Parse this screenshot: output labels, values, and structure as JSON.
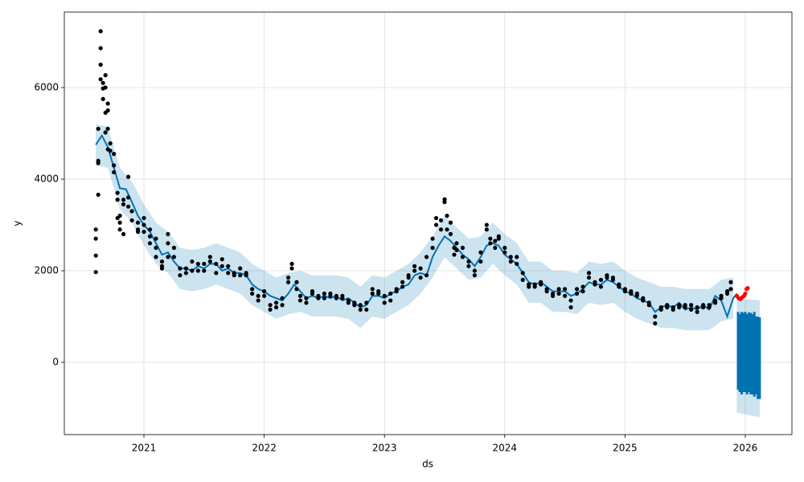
{
  "chart_data": {
    "type": "forecast",
    "xlabel": "ds",
    "ylabel": "y",
    "xlim": [
      2020.338,
      2026.388
    ],
    "ylim": [
      -1579,
      7649
    ],
    "xticks": [
      2021,
      2022,
      2023,
      2024,
      2025,
      2026
    ],
    "yticks": [
      0,
      2000,
      4000,
      6000
    ],
    "grid": true,
    "series": [
      {
        "type": "band",
        "color": "#0072B2",
        "x": [
          2020.6,
          2020.7,
          2020.8,
          2020.9,
          2021.0,
          2021.1,
          2021.2,
          2021.3,
          2021.4,
          2021.5,
          2021.6,
          2021.7,
          2021.8,
          2021.9,
          2022.0,
          2022.1,
          2022.2,
          2022.3,
          2022.4,
          2022.5,
          2022.6,
          2022.7,
          2022.8,
          2022.9,
          2023.0,
          2023.1,
          2023.2,
          2023.3,
          2023.4,
          2023.5,
          2023.6,
          2023.7,
          2023.8,
          2023.9,
          2024.0,
          2024.1,
          2024.2,
          2024.3,
          2024.4,
          2024.5,
          2024.6,
          2024.7,
          2024.8,
          2024.9,
          2025.0,
          2025.1,
          2025.2,
          2025.3,
          2025.4,
          2025.5,
          2025.6,
          2025.7,
          2025.8,
          2025.9
        ],
        "upper": [
          5200,
          5150,
          4250,
          3950,
          3450,
          3050,
          2850,
          2500,
          2450,
          2500,
          2600,
          2500,
          2400,
          2150,
          2000,
          1850,
          1950,
          2000,
          1900,
          1900,
          1900,
          1850,
          1650,
          1900,
          1850,
          2000,
          2150,
          2400,
          2750,
          3200,
          2950,
          2700,
          2750,
          3050,
          2800,
          2600,
          2200,
          2200,
          2000,
          2000,
          1950,
          2200,
          2150,
          2200,
          2000,
          1850,
          1750,
          1650,
          1650,
          1600,
          1600,
          1600,
          1800,
          1850
        ],
        "lower": [
          4300,
          4250,
          3350,
          3050,
          2550,
          2150,
          1950,
          1600,
          1550,
          1600,
          1700,
          1600,
          1500,
          1250,
          1100,
          950,
          1050,
          1100,
          1000,
          1000,
          1000,
          950,
          750,
          1000,
          950,
          1100,
          1250,
          1500,
          1850,
          2300,
          2050,
          1800,
          1850,
          2150,
          1900,
          1700,
          1300,
          1300,
          1100,
          1100,
          1050,
          1300,
          1250,
          1300,
          1100,
          950,
          850,
          750,
          750,
          700,
          700,
          700,
          900,
          950
        ]
      },
      {
        "type": "band",
        "color": "#0072B2",
        "x": [
          2025.93,
          2026.12
        ],
        "upper": [
          1400,
          1350
        ],
        "lower": [
          -1100,
          -1200
        ]
      },
      {
        "type": "line",
        "color": "#0072B2",
        "x": [
          2020.6,
          2020.65,
          2020.7,
          2020.75,
          2020.8,
          2020.85,
          2020.9,
          2020.95,
          2021.0,
          2021.05,
          2021.1,
          2021.15,
          2021.2,
          2021.25,
          2021.3,
          2021.35,
          2021.4,
          2021.45,
          2021.5,
          2021.55,
          2021.6,
          2021.65,
          2021.7,
          2021.75,
          2021.8,
          2021.85,
          2021.9,
          2021.95,
          2022.0,
          2022.05,
          2022.1,
          2022.15,
          2022.2,
          2022.25,
          2022.3,
          2022.35,
          2022.4,
          2022.45,
          2022.5,
          2022.55,
          2022.6,
          2022.65,
          2022.7,
          2022.75,
          2022.8,
          2022.85,
          2022.9,
          2022.95,
          2023.0,
          2023.05,
          2023.1,
          2023.15,
          2023.2,
          2023.25,
          2023.3,
          2023.35,
          2023.4,
          2023.45,
          2023.5,
          2023.55,
          2023.6,
          2023.65,
          2023.7,
          2023.75,
          2023.8,
          2023.85,
          2023.9,
          2023.95,
          2024.0,
          2024.05,
          2024.1,
          2024.15,
          2024.2,
          2024.25,
          2024.3,
          2024.35,
          2024.4,
          2024.45,
          2024.5,
          2024.55,
          2024.6,
          2024.65,
          2024.7,
          2024.75,
          2024.8,
          2024.85,
          2024.9,
          2024.95,
          2025.0,
          2025.05,
          2025.1,
          2025.15,
          2025.2,
          2025.25,
          2025.3,
          2025.35,
          2025.4,
          2025.45,
          2025.5,
          2025.55,
          2025.6,
          2025.65,
          2025.7,
          2025.75,
          2025.8,
          2025.85,
          2025.9,
          2025.93
        ],
        "values": [
          4750,
          4950,
          4700,
          4250,
          3800,
          3780,
          3500,
          3200,
          3000,
          2850,
          2600,
          2350,
          2400,
          2200,
          2050,
          2050,
          2000,
          2100,
          2050,
          2150,
          2150,
          2000,
          2050,
          1950,
          1950,
          1900,
          1700,
          1600,
          1550,
          1450,
          1400,
          1350,
          1500,
          1700,
          1550,
          1400,
          1450,
          1400,
          1450,
          1400,
          1450,
          1350,
          1400,
          1300,
          1200,
          1250,
          1450,
          1450,
          1400,
          1500,
          1550,
          1650,
          1700,
          1900,
          1950,
          1900,
          2300,
          2550,
          2750,
          2650,
          2500,
          2350,
          2250,
          2100,
          2300,
          2550,
          2600,
          2550,
          2350,
          2250,
          2150,
          1950,
          1750,
          1700,
          1750,
          1650,
          1550,
          1550,
          1550,
          1450,
          1500,
          1600,
          1750,
          1700,
          1700,
          1800,
          1750,
          1650,
          1550,
          1500,
          1400,
          1350,
          1300,
          1100,
          1200,
          1250,
          1200,
          1300,
          1150,
          1200,
          1150,
          1250,
          1150,
          1450,
          1350,
          1000,
          1400,
          1500
        ]
      },
      {
        "type": "range",
        "color": "#0072B2",
        "x": [
          2025.94,
          2025.955,
          2025.97,
          2025.985,
          2026.0,
          2026.015,
          2026.03,
          2026.045,
          2026.06,
          2026.075,
          2026.09,
          2026.105,
          2026.12
        ],
        "upper": [
          1100,
          1050,
          1100,
          1080,
          1100,
          1050,
          1090,
          1080,
          1050,
          1100,
          1000,
          1000,
          980
        ],
        "lower": [
          -600,
          -650,
          -700,
          -650,
          -650,
          -700,
          -650,
          -700,
          -700,
          -750,
          -700,
          -800,
          -800
        ]
      },
      {
        "type": "scatter",
        "color": "#000000",
        "x": [
          2020.6,
          2020.6,
          2020.6,
          2020.6,
          2020.62,
          2020.62,
          2020.62,
          2020.62,
          2020.64,
          2020.64,
          2020.64,
          2020.64,
          2020.66,
          2020.66,
          2020.66,
          2020.68,
          2020.68,
          2020.68,
          2020.68,
          2020.7,
          2020.7,
          2020.7,
          2020.7,
          2020.72,
          2020.72,
          2020.75,
          2020.75,
          2020.75,
          2020.78,
          2020.78,
          2020.78,
          2020.8,
          2020.8,
          2020.8,
          2020.83,
          2020.83,
          2020.83,
          2020.87,
          2020.87,
          2020.87,
          2020.9,
          2020.9,
          2020.95,
          2020.95,
          2020.95,
          2021.0,
          2021.0,
          2021.0,
          2021.05,
          2021.05,
          2021.05,
          2021.1,
          2021.1,
          2021.1,
          2021.15,
          2021.15,
          2021.15,
          2021.2,
          2021.2,
          2021.2,
          2021.25,
          2021.25,
          2021.3,
          2021.3,
          2021.35,
          2021.35,
          2021.4,
          2021.4,
          2021.45,
          2021.45,
          2021.5,
          2021.5,
          2021.55,
          2021.55,
          2021.6,
          2021.6,
          2021.65,
          2021.65,
          2021.7,
          2021.7,
          2021.75,
          2021.75,
          2021.8,
          2021.8,
          2021.85,
          2021.85,
          2021.9,
          2021.9,
          2021.95,
          2021.95,
          2022.0,
          2022.0,
          2022.05,
          2022.05,
          2022.1,
          2022.1,
          2022.15,
          2022.15,
          2022.2,
          2022.2,
          2022.23,
          2022.23,
          2022.27,
          2022.27,
          2022.3,
          2022.3,
          2022.35,
          2022.35,
          2022.4,
          2022.4,
          2022.45,
          2022.45,
          2022.5,
          2022.5,
          2022.55,
          2022.55,
          2022.6,
          2022.6,
          2022.65,
          2022.65,
          2022.7,
          2022.7,
          2022.75,
          2022.75,
          2022.8,
          2022.8,
          2022.85,
          2022.85,
          2022.9,
          2022.9,
          2022.95,
          2022.95,
          2023.0,
          2023.0,
          2023.05,
          2023.05,
          2023.1,
          2023.1,
          2023.15,
          2023.15,
          2023.2,
          2023.2,
          2023.25,
          2023.25,
          2023.3,
          2023.3,
          2023.35,
          2023.35,
          2023.4,
          2023.4,
          2023.43,
          2023.43,
          2023.47,
          2023.47,
          2023.5,
          2023.5,
          2023.52,
          2023.52,
          2023.55,
          2023.55,
          2023.58,
          2023.58,
          2023.6,
          2023.6,
          2023.65,
          2023.65,
          2023.7,
          2023.7,
          2023.75,
          2023.75,
          2023.8,
          2023.8,
          2023.85,
          2023.85,
          2023.88,
          2023.88,
          2023.92,
          2023.92,
          2023.95,
          2023.95,
          2024.0,
          2024.0,
          2024.05,
          2024.05,
          2024.1,
          2024.1,
          2024.15,
          2024.15,
          2024.2,
          2024.2,
          2024.25,
          2024.25,
          2024.3,
          2024.3,
          2024.35,
          2024.35,
          2024.4,
          2024.4,
          2024.45,
          2024.45,
          2024.5,
          2024.5,
          2024.55,
          2024.55,
          2024.6,
          2024.6,
          2024.65,
          2024.65,
          2024.7,
          2024.7,
          2024.75,
          2024.75,
          2024.8,
          2024.8,
          2024.85,
          2024.85,
          2024.9,
          2024.9,
          2024.95,
          2024.95,
          2025.0,
          2025.0,
          2025.05,
          2025.05,
          2025.1,
          2025.1,
          2025.15,
          2025.15,
          2025.2,
          2025.2,
          2025.25,
          2025.25,
          2025.3,
          2025.3,
          2025.35,
          2025.35,
          2025.4,
          2025.4,
          2025.45,
          2025.45,
          2025.5,
          2025.5,
          2025.55,
          2025.55,
          2025.6,
          2025.6,
          2025.65,
          2025.65,
          2025.7,
          2025.7,
          2025.75,
          2025.75,
          2025.8,
          2025.8,
          2025.85,
          2025.85,
          2025.88,
          2025.88
        ],
        "values": [
          1970,
          2330,
          2700,
          2900,
          3660,
          4350,
          4400,
          5100,
          6180,
          6860,
          7230,
          6500,
          5980,
          5750,
          6100,
          5450,
          5020,
          6000,
          6270,
          5650,
          5500,
          4650,
          5100,
          4780,
          4620,
          4550,
          4300,
          4150,
          3700,
          3550,
          3150,
          3050,
          2900,
          3200,
          2800,
          3550,
          3450,
          3600,
          3400,
          4050,
          3300,
          3100,
          2900,
          3050,
          2850,
          3150,
          3000,
          2850,
          2750,
          2900,
          2600,
          2500,
          2300,
          2700,
          2200,
          2100,
          2050,
          2300,
          2600,
          2800,
          2500,
          2300,
          2050,
          1900,
          2050,
          1950,
          2200,
          2000,
          2150,
          2000,
          2000,
          2150,
          2300,
          2200,
          2150,
          1950,
          2100,
          2250,
          2100,
          1950,
          1950,
          1900,
          2050,
          1900,
          1950,
          1900,
          1600,
          1500,
          1450,
          1350,
          1450,
          1550,
          1250,
          1150,
          1300,
          1200,
          1400,
          1250,
          1750,
          1850,
          2150,
          2050,
          1750,
          1600,
          1450,
          1350,
          1400,
          1300,
          1500,
          1550,
          1450,
          1400,
          1500,
          1400,
          1500,
          1450,
          1450,
          1400,
          1400,
          1450,
          1350,
          1300,
          1300,
          1250,
          1250,
          1150,
          1300,
          1150,
          1600,
          1500,
          1550,
          1500,
          1450,
          1300,
          1500,
          1350,
          1550,
          1600,
          1650,
          1750,
          1850,
          1900,
          2000,
          2100,
          2050,
          1850,
          1900,
          2300,
          2500,
          2700,
          3000,
          3150,
          3100,
          2900,
          3500,
          3560,
          3200,
          2900,
          3050,
          2800,
          2500,
          2350,
          2450,
          2600,
          2300,
          2500,
          2200,
          2100,
          2000,
          1900,
          2200,
          2400,
          3000,
          2900,
          2700,
          2600,
          2500,
          2650,
          2700,
          2750,
          2500,
          2400,
          2300,
          2200,
          2300,
          2150,
          1950,
          1800,
          1650,
          1700,
          1650,
          1700,
          1750,
          1700,
          1600,
          1550,
          1500,
          1450,
          1600,
          1500,
          1450,
          1600,
          1200,
          1350,
          1500,
          1600,
          1650,
          1550,
          1850,
          1950,
          1750,
          1700,
          1800,
          1650,
          1850,
          1900,
          1850,
          1800,
          1700,
          1650,
          1600,
          1550,
          1550,
          1500,
          1500,
          1450,
          1350,
          1400,
          1300,
          1250,
          1000,
          850,
          1150,
          1200,
          1250,
          1200,
          1200,
          1150,
          1250,
          1200,
          1200,
          1250,
          1150,
          1250,
          1200,
          1100,
          1250,
          1200,
          1200,
          1250,
          1300,
          1350,
          1400,
          1450,
          1500,
          1550,
          1750,
          1600
        ]
      },
      {
        "type": "scatter",
        "color": "#ff0000",
        "x": [
          2025.93,
          2025.945,
          2025.96,
          2025.975,
          2025.99,
          2026.0,
          2026.01,
          2026.02
        ],
        "values": [
          1450,
          1400,
          1380,
          1420,
          1450,
          1500,
          1600,
          1620
        ]
      }
    ]
  }
}
